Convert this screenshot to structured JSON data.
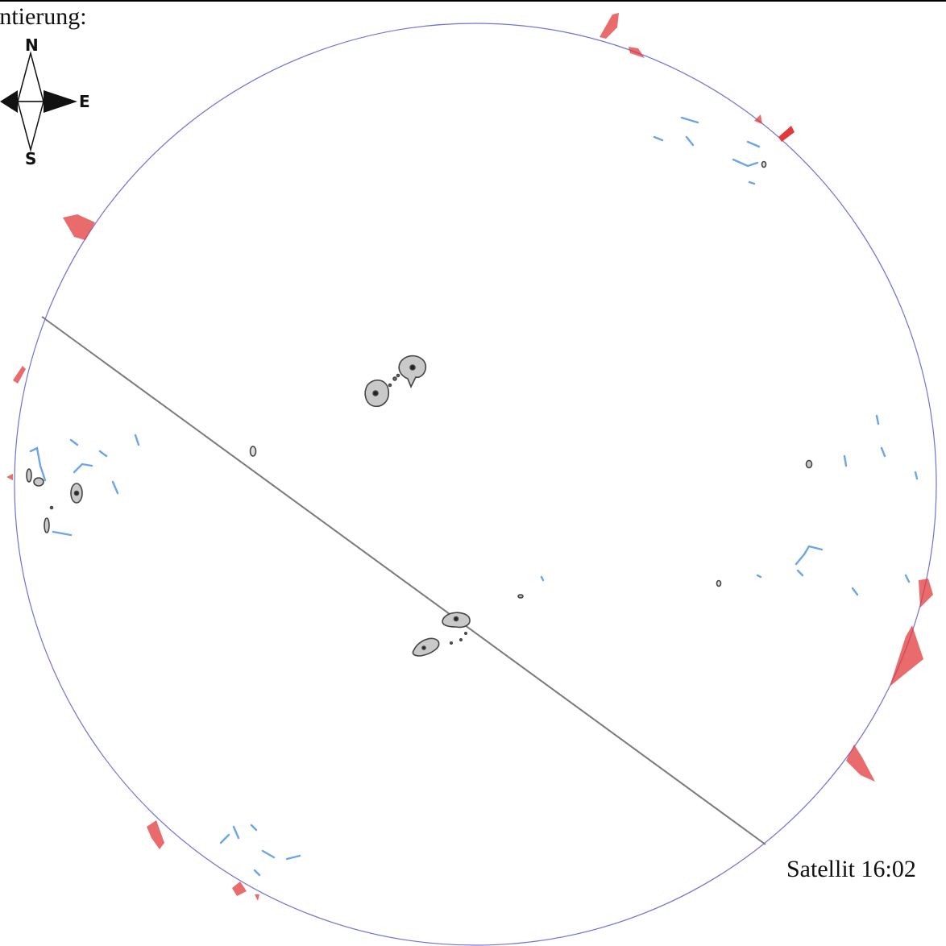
{
  "orientation_label": "entierung:",
  "compass": {
    "north": "N",
    "south": "S",
    "east": "E"
  },
  "satellite_label": "Satellit 16:02",
  "colors": {
    "disk_outline": "#6f6fd6",
    "prominence": "#e23a3a",
    "filament": "#6aa6e8",
    "sunspot": "#555555",
    "path_line": "#7a7a7a"
  }
}
